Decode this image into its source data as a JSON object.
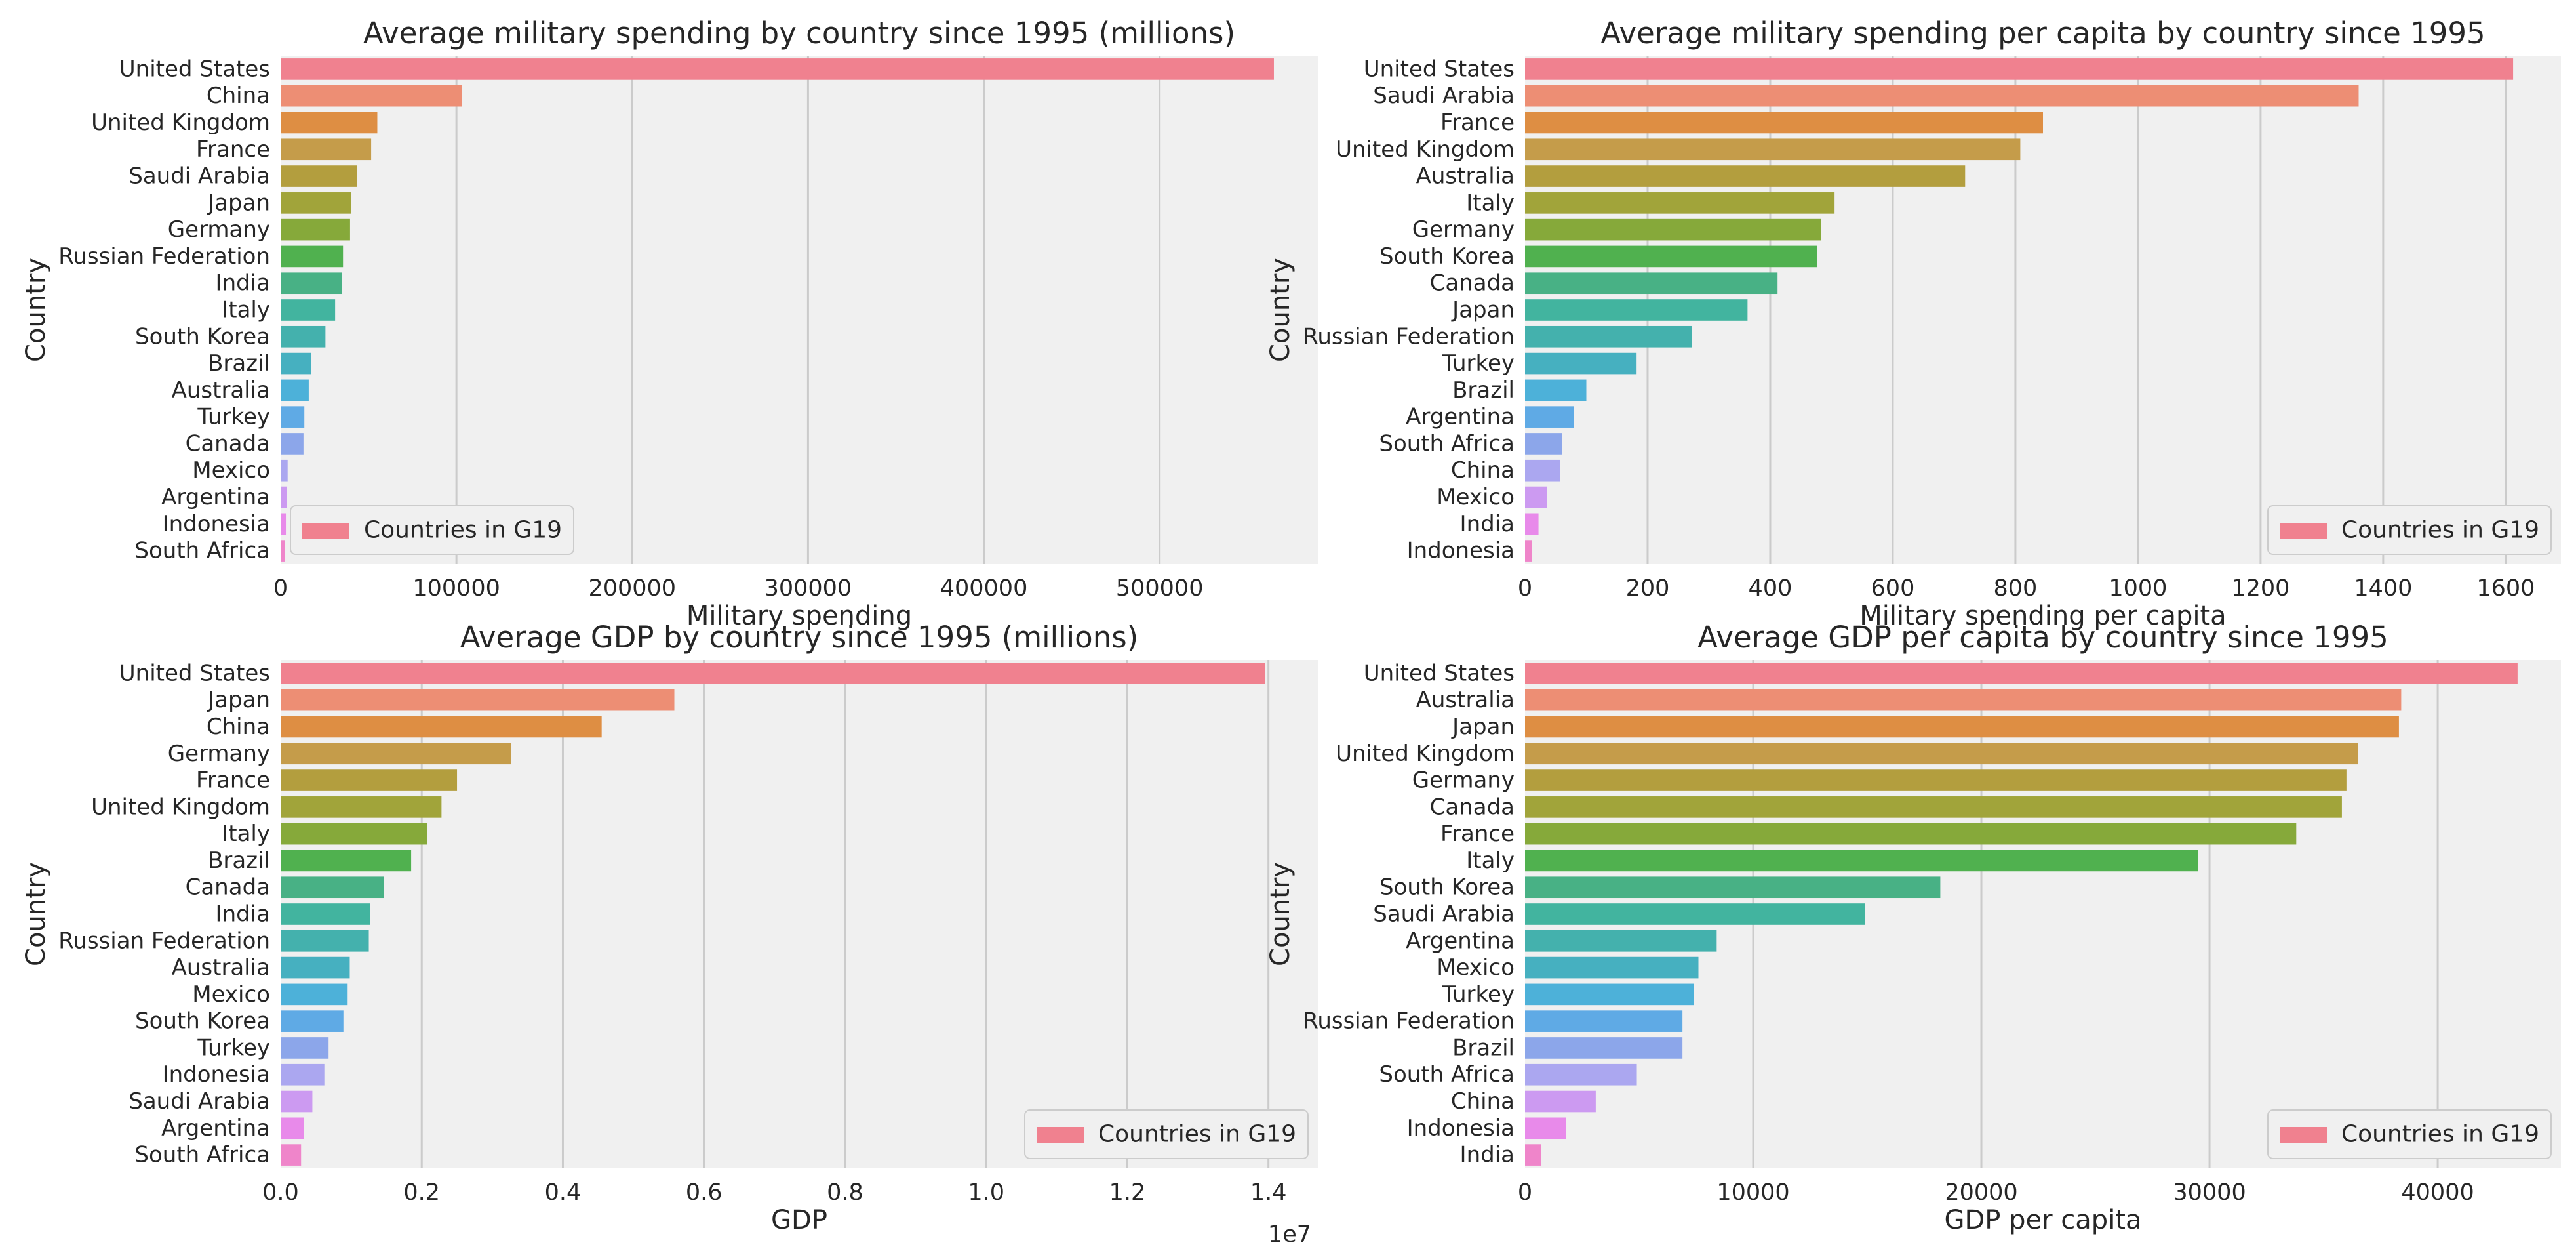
{
  "chart_data": [
    {
      "type": "bar",
      "orientation": "horizontal",
      "title": "Average military spending by country since 1995 (millions)",
      "xlabel": "Military spending",
      "ylabel": "Country",
      "legend": "Countries in G19",
      "legend_position": "lower-left",
      "grid": true,
      "xlim": [
        0,
        590000
      ],
      "xticks": [
        0,
        100000,
        200000,
        300000,
        400000,
        500000
      ],
      "xtick_labels": [
        "0",
        "100000",
        "200000",
        "300000",
        "400000",
        "500000"
      ],
      "tick_offset": "",
      "categories": [
        "United States",
        "China",
        "United Kingdom",
        "France",
        "Saudi Arabia",
        "Japan",
        "Germany",
        "Russian Federation",
        "India",
        "Italy",
        "South Korea",
        "Brazil",
        "Australia",
        "Turkey",
        "Canada",
        "Mexico",
        "Argentina",
        "Indonesia",
        "South Africa"
      ],
      "values": [
        565000,
        103000,
        55000,
        51500,
        43500,
        40000,
        39500,
        35500,
        35000,
        31000,
        25500,
        17500,
        16000,
        13500,
        13000,
        4000,
        3500,
        3000,
        2500
      ]
    },
    {
      "type": "bar",
      "orientation": "horizontal",
      "title": "Average military spending per capita by country since 1995",
      "xlabel": "Military spending per capita",
      "ylabel": "Country",
      "legend": "Countries in G19",
      "legend_position": "lower-right",
      "grid": true,
      "xlim": [
        0,
        1690
      ],
      "xticks": [
        0,
        200,
        400,
        600,
        800,
        1000,
        1200,
        1400,
        1600
      ],
      "xtick_labels": [
        "0",
        "200",
        "400",
        "600",
        "800",
        "1000",
        "1200",
        "1400",
        "1600"
      ],
      "tick_offset": "",
      "categories": [
        "United States",
        "Saudi Arabia",
        "France",
        "United Kingdom",
        "Australia",
        "Italy",
        "Germany",
        "South Korea",
        "Canada",
        "Japan",
        "Russian Federation",
        "Turkey",
        "Brazil",
        "Argentina",
        "South Africa",
        "China",
        "Mexico",
        "India",
        "Indonesia"
      ],
      "values": [
        1612,
        1360,
        845,
        808,
        718,
        505,
        483,
        477,
        412,
        363,
        272,
        182,
        100,
        80,
        60,
        57,
        36,
        22,
        11
      ]
    },
    {
      "type": "bar",
      "orientation": "horizontal",
      "title": "Average GDP by country since 1995 (millions)",
      "xlabel": "GDP",
      "ylabel": "Country",
      "legend": "Countries in G19",
      "legend_position": "lower-right",
      "grid": true,
      "xlim": [
        0,
        14700000
      ],
      "xticks": [
        0,
        2000000,
        4000000,
        6000000,
        8000000,
        10000000,
        12000000,
        14000000
      ],
      "xtick_labels": [
        "0.0",
        "0.2",
        "0.4",
        "0.6",
        "0.8",
        "1.0",
        "1.2",
        "1.4"
      ],
      "tick_offset": "1e7",
      "categories": [
        "United States",
        "Japan",
        "China",
        "Germany",
        "France",
        "United Kingdom",
        "Italy",
        "Brazil",
        "Canada",
        "India",
        "Russian Federation",
        "Australia",
        "Mexico",
        "South Korea",
        "Turkey",
        "Indonesia",
        "Saudi Arabia",
        "Argentina",
        "South Africa"
      ],
      "values": [
        13950000,
        5580000,
        4550000,
        3270000,
        2500000,
        2280000,
        2080000,
        1850000,
        1460000,
        1270000,
        1250000,
        980000,
        950000,
        890000,
        680000,
        620000,
        450000,
        330000,
        290000
      ]
    },
    {
      "type": "bar",
      "orientation": "horizontal",
      "title": "Average GDP per capita by country since 1995",
      "xlabel": "GDP per capita",
      "ylabel": "Country",
      "legend": "Countries in G19",
      "legend_position": "lower-right",
      "grid": true,
      "xlim": [
        0,
        45400
      ],
      "xticks": [
        0,
        10000,
        20000,
        30000,
        40000
      ],
      "xtick_labels": [
        "0",
        "10000",
        "20000",
        "30000",
        "40000"
      ],
      "tick_offset": "",
      "categories": [
        "United States",
        "Australia",
        "Japan",
        "United Kingdom",
        "Germany",
        "Canada",
        "France",
        "Italy",
        "South Korea",
        "Saudi Arabia",
        "Argentina",
        "Mexico",
        "Turkey",
        "Russian Federation",
        "Brazil",
        "South Africa",
        "China",
        "Indonesia",
        "India"
      ],
      "values": [
        43500,
        38400,
        38300,
        36500,
        36000,
        35800,
        33800,
        29500,
        18200,
        14900,
        8400,
        7600,
        7400,
        6900,
        6900,
        4900,
        3100,
        1800,
        700
      ]
    }
  ],
  "colors": {
    "background": "#f0f0f0",
    "grid": "#cbcbcb",
    "text": "#262626",
    "bar_palette": [
      "#f0818f",
      "#ed8e74",
      "#de8e43",
      "#c59c4a",
      "#b39e3e",
      "#a1a43a",
      "#86a93a",
      "#50b14f",
      "#48b185",
      "#42b49f",
      "#44b1ad",
      "#46b0c0",
      "#4db1d9",
      "#5faae5",
      "#8ca6ea",
      "#aba7f0",
      "#cc9af1",
      "#e88aea",
      "#ef85ca"
    ]
  }
}
